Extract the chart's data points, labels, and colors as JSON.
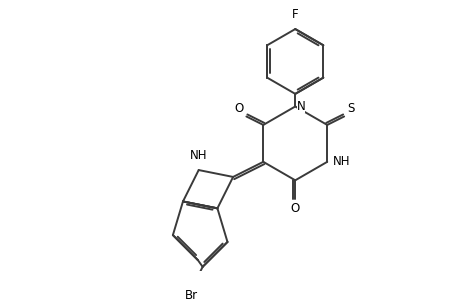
{
  "background_color": "#ffffff",
  "line_color": "#3a3a3a",
  "text_color": "#000000",
  "line_width": 1.4,
  "font_size": 8.5,
  "figsize": [
    4.6,
    3.0
  ],
  "dpi": 100,
  "xlim": [
    0,
    9.2
  ],
  "ylim": [
    0,
    6.0
  ]
}
